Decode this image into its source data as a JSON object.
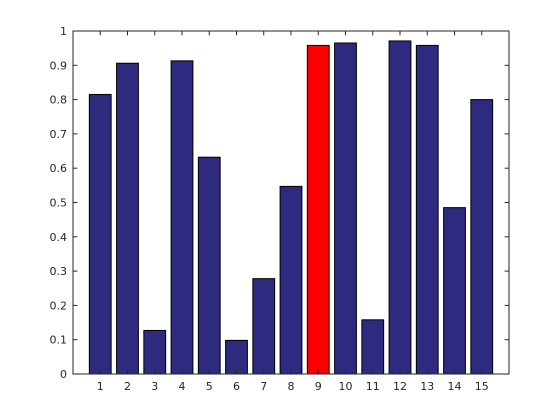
{
  "chart_data": {
    "type": "bar",
    "title": "",
    "xlabel": "",
    "ylabel": "",
    "categories": [
      "1",
      "2",
      "3",
      "4",
      "5",
      "6",
      "7",
      "8",
      "9",
      "10",
      "11",
      "12",
      "13",
      "14",
      "15"
    ],
    "values": [
      0.815,
      0.906,
      0.127,
      0.913,
      0.632,
      0.098,
      0.278,
      0.547,
      0.958,
      0.965,
      0.158,
      0.971,
      0.958,
      0.485,
      0.8
    ],
    "ylim": [
      0,
      1
    ],
    "yticks": [
      "0",
      "0.1",
      "0.2",
      "0.3",
      "0.4",
      "0.5",
      "0.6",
      "0.7",
      "0.8",
      "0.9",
      "1"
    ],
    "xlim": [
      0,
      16
    ],
    "grid": false,
    "legend": "none",
    "bar_color": "#2e2a80",
    "highlight_index": 8,
    "highlight_color": "#ff0000",
    "edge_color": "#000000"
  }
}
